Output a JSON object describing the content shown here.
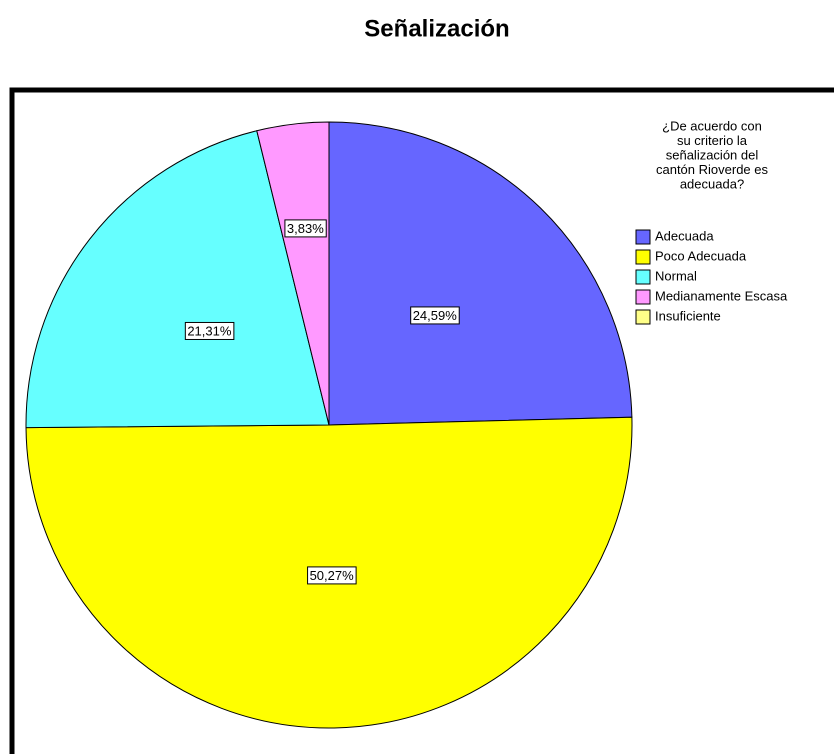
{
  "chart_data": {
    "type": "pie",
    "title": "Señalización",
    "legend_title": [
      "¿De acuerdo con",
      "su criterio la",
      "señalización del",
      "cantón Rioverde es",
      "adecuada?"
    ],
    "categories": [
      "Adecuada",
      "Poco Adecuada",
      "Normal",
      "Medianamente Escasa",
      "Insuficiente"
    ],
    "values": [
      24.59,
      50.27,
      21.31,
      3.83,
      0
    ],
    "value_labels": [
      "24,59%",
      "50,27%",
      "21,31%",
      "3,83%",
      null
    ],
    "colors": [
      "#6666ff",
      "#ffff00",
      "#66ffff",
      "#ff99ff",
      "#ffff88"
    ],
    "legend": "top-right"
  }
}
